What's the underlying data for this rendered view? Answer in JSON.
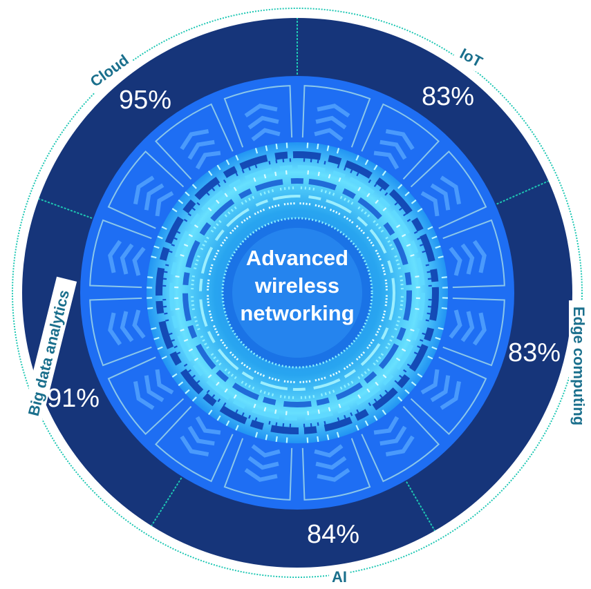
{
  "chart_data": {
    "type": "pie",
    "center_label": [
      "Advanced",
      "wireless",
      "networking"
    ],
    "segments": [
      {
        "label": "IoT",
        "value": "83%"
      },
      {
        "label": "Edge computing",
        "value": "83%"
      },
      {
        "label": "AI",
        "value": "84%"
      },
      {
        "label": "Big data analytics",
        "value": "91%"
      },
      {
        "label": "Cloud",
        "value": "95%"
      }
    ]
  },
  "colors": {
    "outer_ring": "#16357a",
    "mid_disc": "#1e6ef3",
    "inner_glow": "#27b6f2",
    "label_teal": "#1a6f8c",
    "divider": "#1ec7b3"
  }
}
